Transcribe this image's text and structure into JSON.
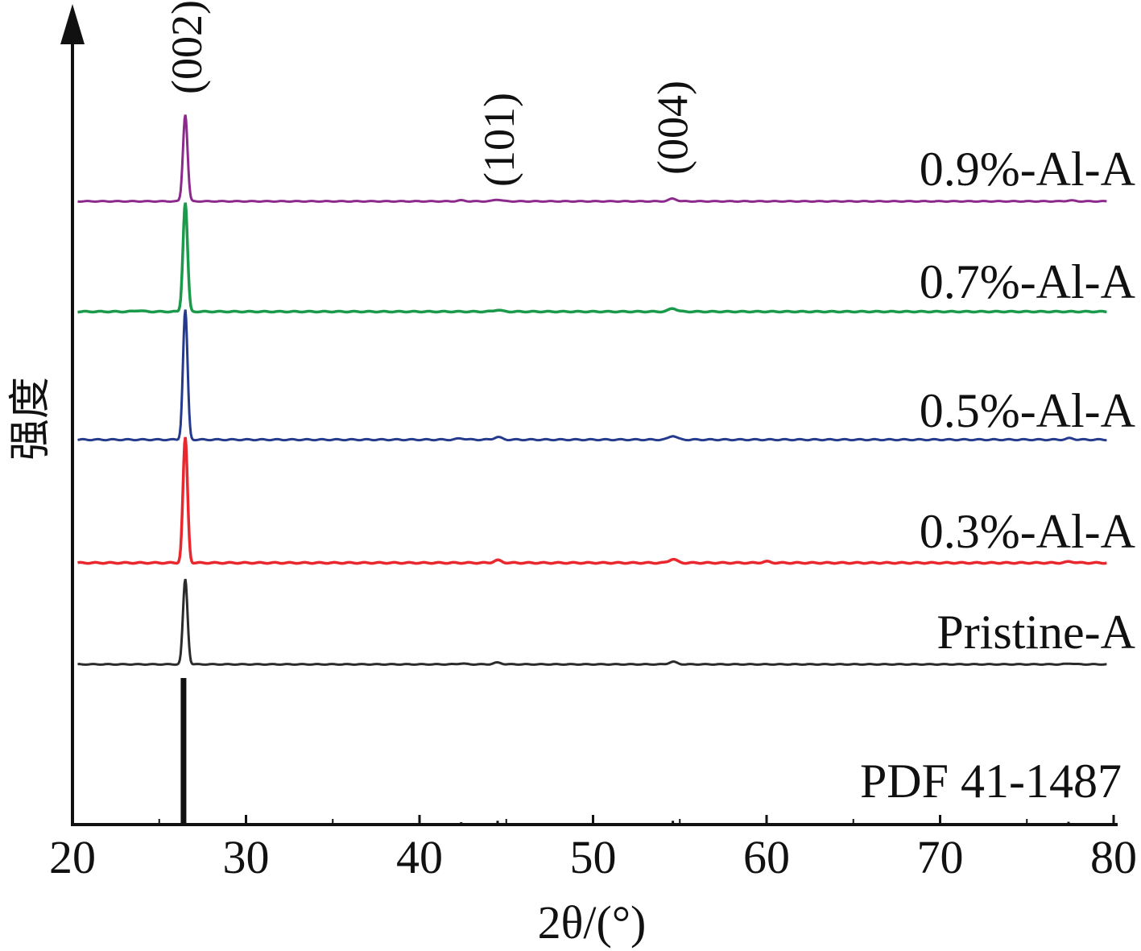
{
  "chart_data": {
    "type": "line",
    "title": "",
    "xlabel": "2θ/(°)",
    "ylabel": "强度",
    "xlim": [
      20,
      80
    ],
    "xticks": [
      20,
      30,
      40,
      50,
      60,
      70,
      80
    ],
    "peak_labels": [
      {
        "label": "(002)",
        "x": 26.5
      },
      {
        "label": "(101)",
        "x": 44.5
      },
      {
        "label": "(004)",
        "x": 54.5
      }
    ],
    "series": [
      {
        "name": "0.9%-Al-A",
        "color": "#8b2a8b",
        "peak_height": 0.9,
        "peaks": [
          {
            "x": 26.5,
            "h": 100
          },
          {
            "x": 44.5,
            "h": 2
          },
          {
            "x": 54.6,
            "h": 3
          },
          {
            "x": 42.4,
            "h": 1
          },
          {
            "x": 77.5,
            "h": 1
          }
        ]
      },
      {
        "name": "0.7%-Al-A",
        "color": "#1a9a4a",
        "peak_height": 1.0,
        "peaks": [
          {
            "x": 26.5,
            "h": 100
          },
          {
            "x": 44.5,
            "h": 1.5
          },
          {
            "x": 54.6,
            "h": 3
          },
          {
            "x": 23.8,
            "h": 1
          }
        ]
      },
      {
        "name": "0.5%-Al-A",
        "color": "#243a8c",
        "peak_height": 1.0,
        "peaks": [
          {
            "x": 26.5,
            "h": 100
          },
          {
            "x": 44.5,
            "h": 2
          },
          {
            "x": 54.6,
            "h": 3
          },
          {
            "x": 42.4,
            "h": 1
          },
          {
            "x": 77.5,
            "h": 1
          }
        ]
      },
      {
        "name": "0.3%-Al-A",
        "color": "#e8282e",
        "peak_height": 1.0,
        "peaks": [
          {
            "x": 26.5,
            "h": 100
          },
          {
            "x": 44.5,
            "h": 2
          },
          {
            "x": 54.6,
            "h": 3
          },
          {
            "x": 60.0,
            "h": 1
          },
          {
            "x": 77.5,
            "h": 1
          }
        ]
      },
      {
        "name": "Pristine-A",
        "color": "#2b2b2b",
        "peak_height": 0.85,
        "peaks": [
          {
            "x": 26.5,
            "h": 100
          },
          {
            "x": 44.5,
            "h": 2
          },
          {
            "x": 54.6,
            "h": 3
          },
          {
            "x": 42.4,
            "h": 1
          },
          {
            "x": 77.5,
            "h": 1
          }
        ]
      }
    ],
    "reference": {
      "name": "PDF 41-1487",
      "color": "#111111",
      "lines": [
        {
          "x": 26.4,
          "h": 100
        },
        {
          "x": 42.4,
          "h": 0.5
        },
        {
          "x": 44.5,
          "h": 1.5
        },
        {
          "x": 54.6,
          "h": 1.5
        },
        {
          "x": 77.4,
          "h": 0.8
        }
      ]
    }
  }
}
